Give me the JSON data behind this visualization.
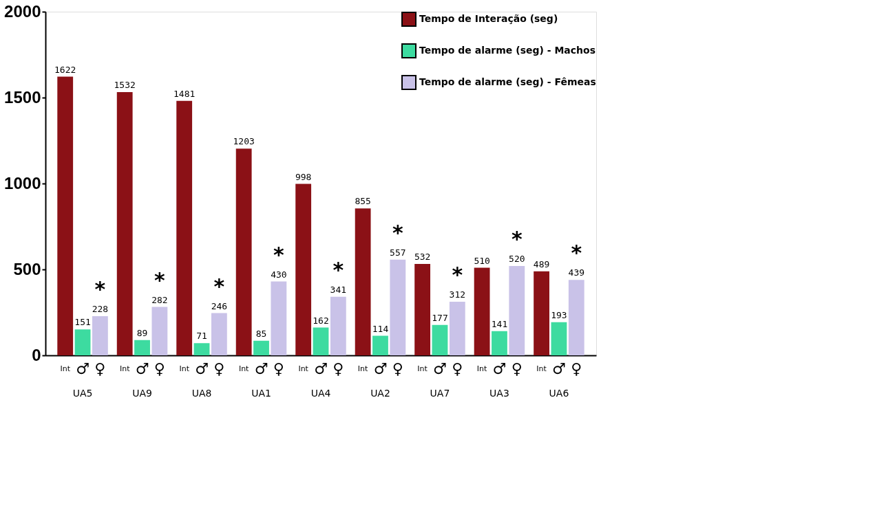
{
  "chart_data": {
    "type": "bar",
    "categories": [
      "UA5",
      "UA9",
      "UA8",
      "UA1",
      "UA4",
      "UA2",
      "UA7",
      "UA3",
      "UA6"
    ],
    "series": [
      {
        "name": "Tempo de Interação (seg)",
        "color": "#8b1116",
        "values": [
          1622,
          1532,
          1481,
          1203,
          998,
          855,
          532,
          510,
          489
        ]
      },
      {
        "name": "Tempo de alarme (seg) - Machos",
        "color": "#3ddba0",
        "values": [
          151,
          89,
          71,
          85,
          162,
          114,
          177,
          141,
          193
        ]
      },
      {
        "name": "Tempo de alarme (seg) - Fêmeas",
        "color": "#c9c2e8",
        "values": [
          228,
          282,
          246,
          430,
          341,
          557,
          312,
          520,
          439
        ]
      }
    ],
    "ylim": [
      0,
      2000
    ],
    "yticks": [
      0,
      500,
      1000,
      1500,
      2000
    ],
    "grid": false,
    "legend": "top right",
    "data_labels": true,
    "annotations": [
      "Int",
      "♂",
      "♀",
      "*",
      "*",
      "*",
      "*",
      "*",
      "*",
      "*",
      "*",
      "*"
    ]
  }
}
